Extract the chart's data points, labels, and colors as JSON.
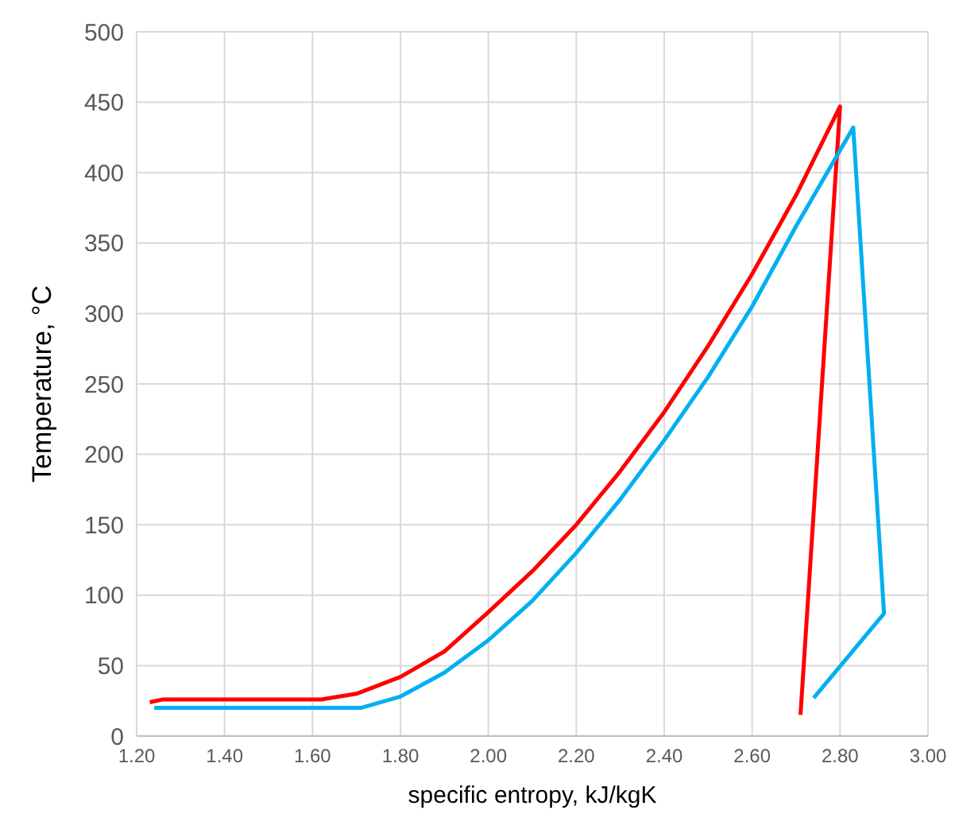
{
  "chart_data": {
    "type": "line",
    "xlabel": "specific entropy, kJ/kgK",
    "ylabel": "Temperature, °C",
    "xlim": [
      1.2,
      3.0
    ],
    "ylim": [
      0,
      500
    ],
    "xticks": [
      {
        "value": 1.2,
        "label": "1.20"
      },
      {
        "value": 1.4,
        "label": "1.40"
      },
      {
        "value": 1.6,
        "label": "1.60"
      },
      {
        "value": 1.8,
        "label": "1.80"
      },
      {
        "value": 2.0,
        "label": "2.00"
      },
      {
        "value": 2.2,
        "label": "2.20"
      },
      {
        "value": 2.4,
        "label": "2.40"
      },
      {
        "value": 2.6,
        "label": "2.60"
      },
      {
        "value": 2.8,
        "label": "2.80"
      },
      {
        "value": 3.0,
        "label": "3.00"
      }
    ],
    "yticks": [
      0,
      50,
      100,
      150,
      200,
      250,
      300,
      350,
      400,
      450,
      500
    ],
    "grid": true,
    "marker": "none",
    "line_style": "solid",
    "series": [
      {
        "color": "#ff0000",
        "x": [
          1.23,
          1.26,
          1.62,
          1.7,
          1.8,
          1.9,
          2.0,
          2.1,
          2.2,
          2.3,
          2.4,
          2.5,
          2.6,
          2.7,
          2.8,
          2.71
        ],
        "values": [
          24,
          26,
          26,
          30,
          42,
          60,
          88,
          117,
          150,
          188,
          230,
          277,
          328,
          384,
          447,
          15
        ]
      },
      {
        "color": "#00b0f0",
        "x": [
          1.24,
          1.71,
          1.8,
          1.9,
          2.0,
          2.1,
          2.2,
          2.3,
          2.4,
          2.5,
          2.6,
          2.7,
          2.83,
          2.9,
          2.74
        ],
        "values": [
          20,
          20,
          28,
          45,
          68,
          96,
          130,
          168,
          210,
          255,
          305,
          362,
          432,
          87,
          27
        ]
      }
    ]
  }
}
